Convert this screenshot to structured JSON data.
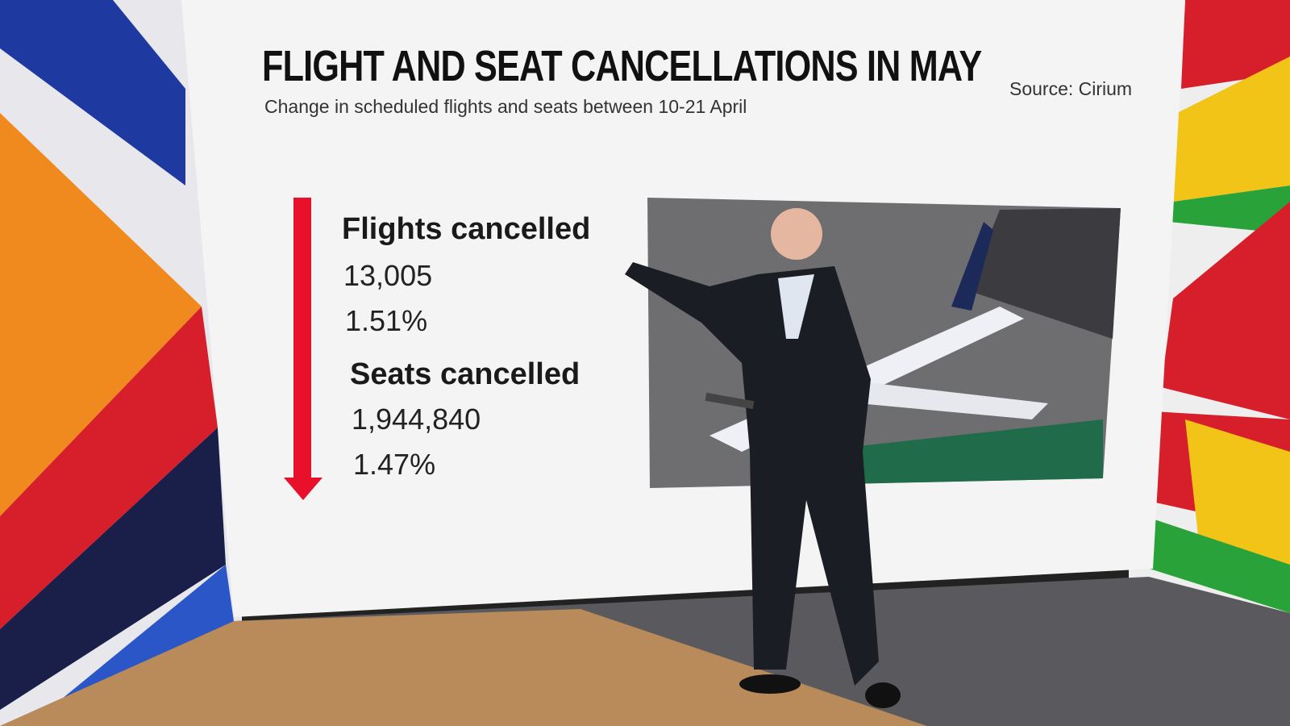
{
  "screen": {
    "title": "FLIGHT AND SEAT CANCELLATIONS IN MAY",
    "subtitle": "Change in scheduled flights and seats between 10-21 April",
    "source": "Source: Cirium",
    "stats": [
      {
        "label": "Flights cancelled",
        "count": "13,005",
        "percent": "1.51%"
      },
      {
        "label": "Seats cancelled",
        "count": "1,944,840",
        "percent": "1.47%"
      }
    ]
  }
}
